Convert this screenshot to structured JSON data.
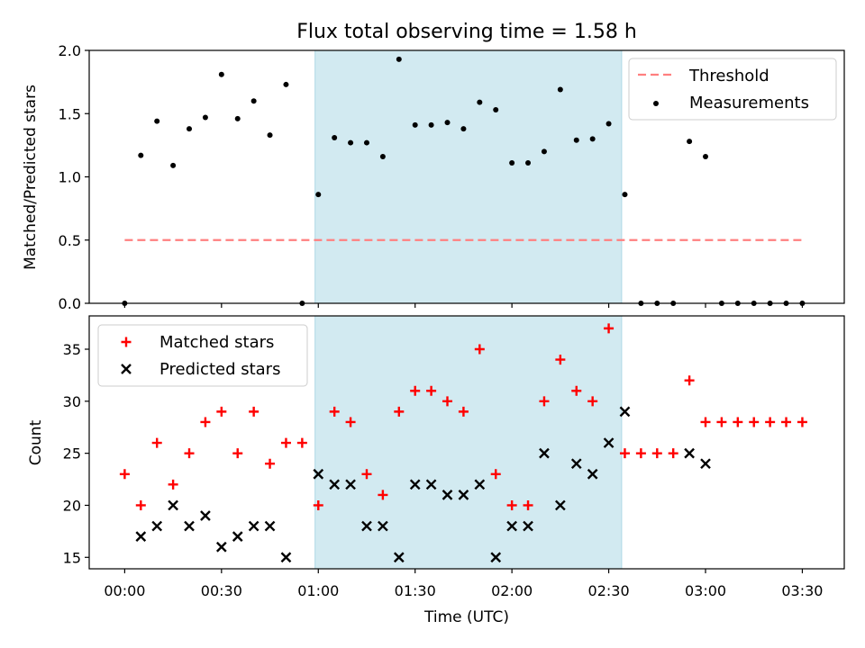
{
  "chart_data": [
    {
      "type": "scatter",
      "title": "Flux total observing time = 1.58 h",
      "xlabel": "",
      "ylabel": "Matched/Predicted stars",
      "xlim": [
        "23:49",
        "03:43"
      ],
      "ylim": [
        0,
        2.0
      ],
      "yticks": [
        "0.0",
        "0.5",
        "1.0",
        "1.5",
        "2.0"
      ],
      "legend": "upper-right",
      "shaded_interval": [
        "00:59",
        "02:34"
      ],
      "shade_color": "#add8e6",
      "threshold": {
        "label": "Threshold",
        "value": 0.5,
        "x_range": [
          "00:00",
          "03:30"
        ],
        "color": "#ff7f7f"
      },
      "series": [
        {
          "name": "Measurements",
          "color": "#000000",
          "points": [
            [
              "00:00",
              0.0
            ],
            [
              "00:05",
              1.17
            ],
            [
              "00:10",
              1.44
            ],
            [
              "00:15",
              1.09
            ],
            [
              "00:20",
              1.38
            ],
            [
              "00:25",
              1.47
            ],
            [
              "00:30",
              1.81
            ],
            [
              "00:35",
              1.46
            ],
            [
              "00:40",
              1.6
            ],
            [
              "00:45",
              1.33
            ],
            [
              "00:50",
              1.73
            ],
            [
              "00:55",
              0.0
            ],
            [
              "01:00",
              0.86
            ],
            [
              "01:05",
              1.31
            ],
            [
              "01:10",
              1.27
            ],
            [
              "01:15",
              1.27
            ],
            [
              "01:20",
              1.16
            ],
            [
              "01:25",
              1.93
            ],
            [
              "01:30",
              1.41
            ],
            [
              "01:35",
              1.41
            ],
            [
              "01:40",
              1.43
            ],
            [
              "01:45",
              1.38
            ],
            [
              "01:50",
              1.59
            ],
            [
              "01:55",
              1.53
            ],
            [
              "02:00",
              1.11
            ],
            [
              "02:05",
              1.11
            ],
            [
              "02:10",
              1.2
            ],
            [
              "02:15",
              1.69
            ],
            [
              "02:20",
              1.29
            ],
            [
              "02:25",
              1.3
            ],
            [
              "02:30",
              1.42
            ],
            [
              "02:35",
              0.86
            ],
            [
              "02:40",
              0.0
            ],
            [
              "02:45",
              0.0
            ],
            [
              "02:50",
              0.0
            ],
            [
              "02:55",
              1.28
            ],
            [
              "03:00",
              1.16
            ],
            [
              "03:05",
              0.0
            ],
            [
              "03:10",
              0.0
            ],
            [
              "03:15",
              0.0
            ],
            [
              "03:20",
              0.0
            ],
            [
              "03:25",
              0.0
            ],
            [
              "03:30",
              0.0
            ]
          ]
        }
      ]
    },
    {
      "type": "scatter",
      "title": "",
      "xlabel": "Time (UTC)",
      "ylabel": "Count",
      "xlim": [
        "23:49",
        "03:43"
      ],
      "ylim": [
        13.9,
        38.2
      ],
      "xticks": [
        "00:00",
        "00:30",
        "01:00",
        "01:30",
        "02:00",
        "02:30",
        "03:00",
        "03:30"
      ],
      "yticks": [
        "15",
        "20",
        "25",
        "30",
        "35"
      ],
      "legend": "upper-left",
      "shaded_interval": [
        "00:59",
        "02:34"
      ],
      "shade_color": "#add8e6",
      "series": [
        {
          "name": "Matched stars",
          "marker": "plus",
          "color": "#ff0000",
          "points": [
            [
              "00:00",
              23
            ],
            [
              "00:05",
              20
            ],
            [
              "00:10",
              26
            ],
            [
              "00:15",
              22
            ],
            [
              "00:20",
              25
            ],
            [
              "00:25",
              28
            ],
            [
              "00:30",
              29
            ],
            [
              "00:35",
              25
            ],
            [
              "00:40",
              29
            ],
            [
              "00:45",
              24
            ],
            [
              "00:50",
              26
            ],
            [
              "00:55",
              26
            ],
            [
              "01:00",
              20
            ],
            [
              "01:05",
              29
            ],
            [
              "01:10",
              28
            ],
            [
              "01:15",
              23
            ],
            [
              "01:20",
              21
            ],
            [
              "01:25",
              29
            ],
            [
              "01:30",
              31
            ],
            [
              "01:35",
              31
            ],
            [
              "01:40",
              30
            ],
            [
              "01:45",
              29
            ],
            [
              "01:50",
              35
            ],
            [
              "01:55",
              23
            ],
            [
              "02:00",
              20
            ],
            [
              "02:05",
              20
            ],
            [
              "02:10",
              30
            ],
            [
              "02:15",
              34
            ],
            [
              "02:20",
              31
            ],
            [
              "02:25",
              30
            ],
            [
              "02:30",
              37
            ],
            [
              "02:35",
              25
            ],
            [
              "02:40",
              25
            ],
            [
              "02:45",
              25
            ],
            [
              "02:50",
              25
            ],
            [
              "02:55",
              32
            ],
            [
              "03:00",
              28
            ],
            [
              "03:05",
              28
            ],
            [
              "03:10",
              28
            ],
            [
              "03:15",
              28
            ],
            [
              "03:20",
              28
            ],
            [
              "03:25",
              28
            ],
            [
              "03:30",
              28
            ]
          ]
        },
        {
          "name": "Predicted stars",
          "marker": "x",
          "color": "#000000",
          "points": [
            [
              "00:05",
              17
            ],
            [
              "00:10",
              18
            ],
            [
              "00:15",
              20
            ],
            [
              "00:20",
              18
            ],
            [
              "00:25",
              19
            ],
            [
              "00:30",
              16
            ],
            [
              "00:35",
              17
            ],
            [
              "00:40",
              18
            ],
            [
              "00:45",
              18
            ],
            [
              "00:50",
              15
            ],
            [
              "01:00",
              23
            ],
            [
              "01:05",
              22
            ],
            [
              "01:10",
              22
            ],
            [
              "01:15",
              18
            ],
            [
              "01:20",
              18
            ],
            [
              "01:25",
              15
            ],
            [
              "01:30",
              22
            ],
            [
              "01:35",
              22
            ],
            [
              "01:40",
              21
            ],
            [
              "01:45",
              21
            ],
            [
              "01:50",
              22
            ],
            [
              "01:55",
              15
            ],
            [
              "02:00",
              18
            ],
            [
              "02:05",
              18
            ],
            [
              "02:10",
              25
            ],
            [
              "02:15",
              20
            ],
            [
              "02:20",
              24
            ],
            [
              "02:25",
              23
            ],
            [
              "02:30",
              26
            ],
            [
              "02:35",
              29
            ],
            [
              "02:55",
              25
            ],
            [
              "03:00",
              24
            ]
          ]
        }
      ]
    }
  ]
}
